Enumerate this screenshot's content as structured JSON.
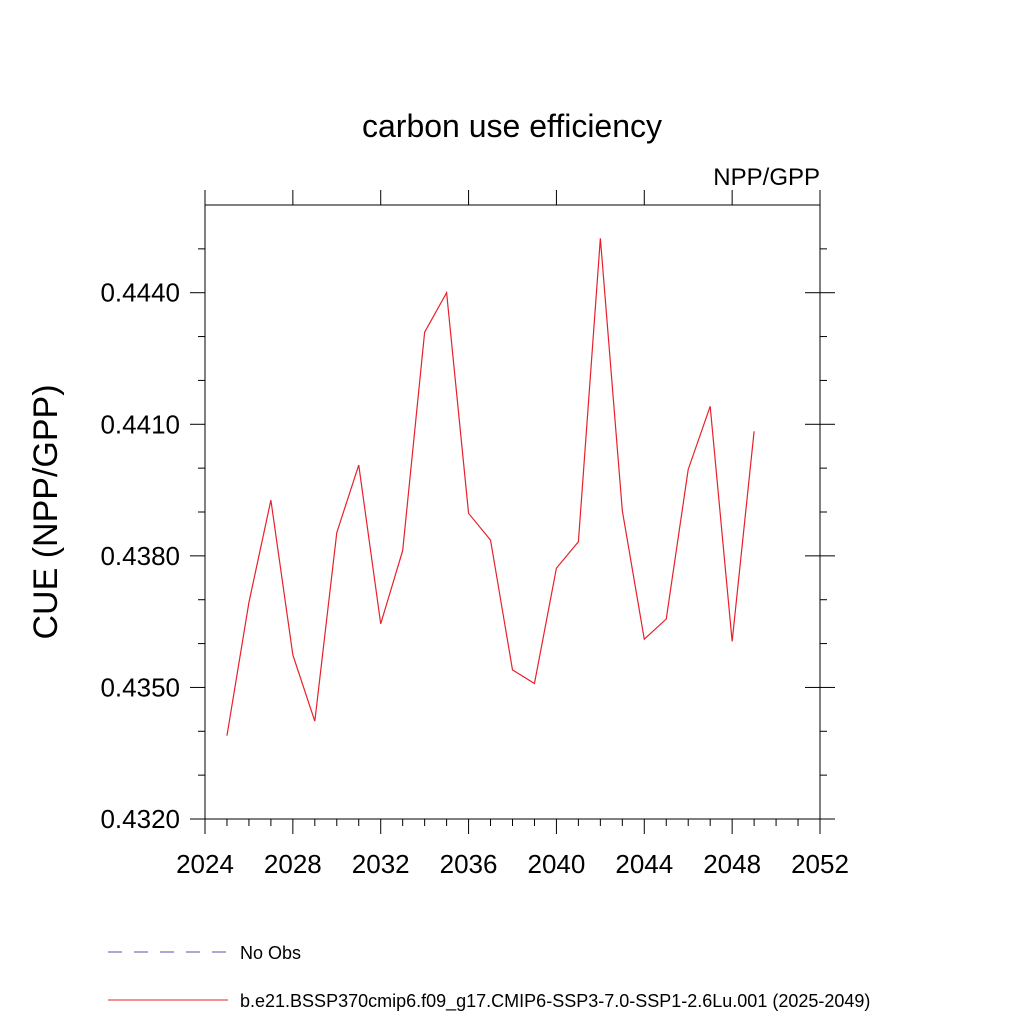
{
  "chart_data": {
    "type": "line",
    "title": "carbon use efficiency",
    "subtitle": "NPP/GPP",
    "ylabel": "CUE  (NPP/GPP)",
    "xlabel": "",
    "xlim": [
      2024,
      2052
    ],
    "ylim": [
      0.432,
      0.446
    ],
    "x_ticks": [
      2024,
      2028,
      2032,
      2036,
      2040,
      2044,
      2048,
      2052
    ],
    "x_tick_labels": [
      "2024",
      "2028",
      "2032",
      "2036",
      "2040",
      "2044",
      "2048",
      "2052"
    ],
    "y_ticks": [
      0.432,
      0.435,
      0.438,
      0.441,
      0.444
    ],
    "y_tick_labels": [
      "0.4320",
      "0.4350",
      "0.4380",
      "0.4410",
      "0.4440"
    ],
    "grid": false,
    "legend_position": "bottom",
    "series": [
      {
        "name": "b.e21.BSSP370cmip6.f09_g17.CMIP6-SSP3-7.0-SSP1-2.6Lu.001 (2025-2049)",
        "color": "#e8202a",
        "style": "solid",
        "x": [
          2025,
          2026,
          2027,
          2028,
          2029,
          2030,
          2031,
          2032,
          2033,
          2034,
          2035,
          2036,
          2037,
          2038,
          2039,
          2040,
          2041,
          2042,
          2043,
          2044,
          2045,
          2046,
          2047,
          2048,
          2049
        ],
        "y": [
          0.4339,
          0.43694,
          0.43927,
          0.43574,
          0.43423,
          0.43853,
          0.44007,
          0.43645,
          0.43812,
          0.4431,
          0.444,
          0.43897,
          0.43836,
          0.4354,
          0.43509,
          0.43772,
          0.43832,
          0.44524,
          0.43903,
          0.4361,
          0.43656,
          0.43997,
          0.44141,
          0.43605,
          0.44084
        ]
      }
    ],
    "legend": [
      {
        "label": "No Obs",
        "color": "#5a4fa8",
        "style": "dashed"
      },
      {
        "label": "b.e21.BSSP370cmip6.f09_g17.CMIP6-SSP3-7.0-SSP1-2.6Lu.001 (2025-2049)",
        "color": "#e8202a",
        "style": "solid"
      }
    ]
  }
}
